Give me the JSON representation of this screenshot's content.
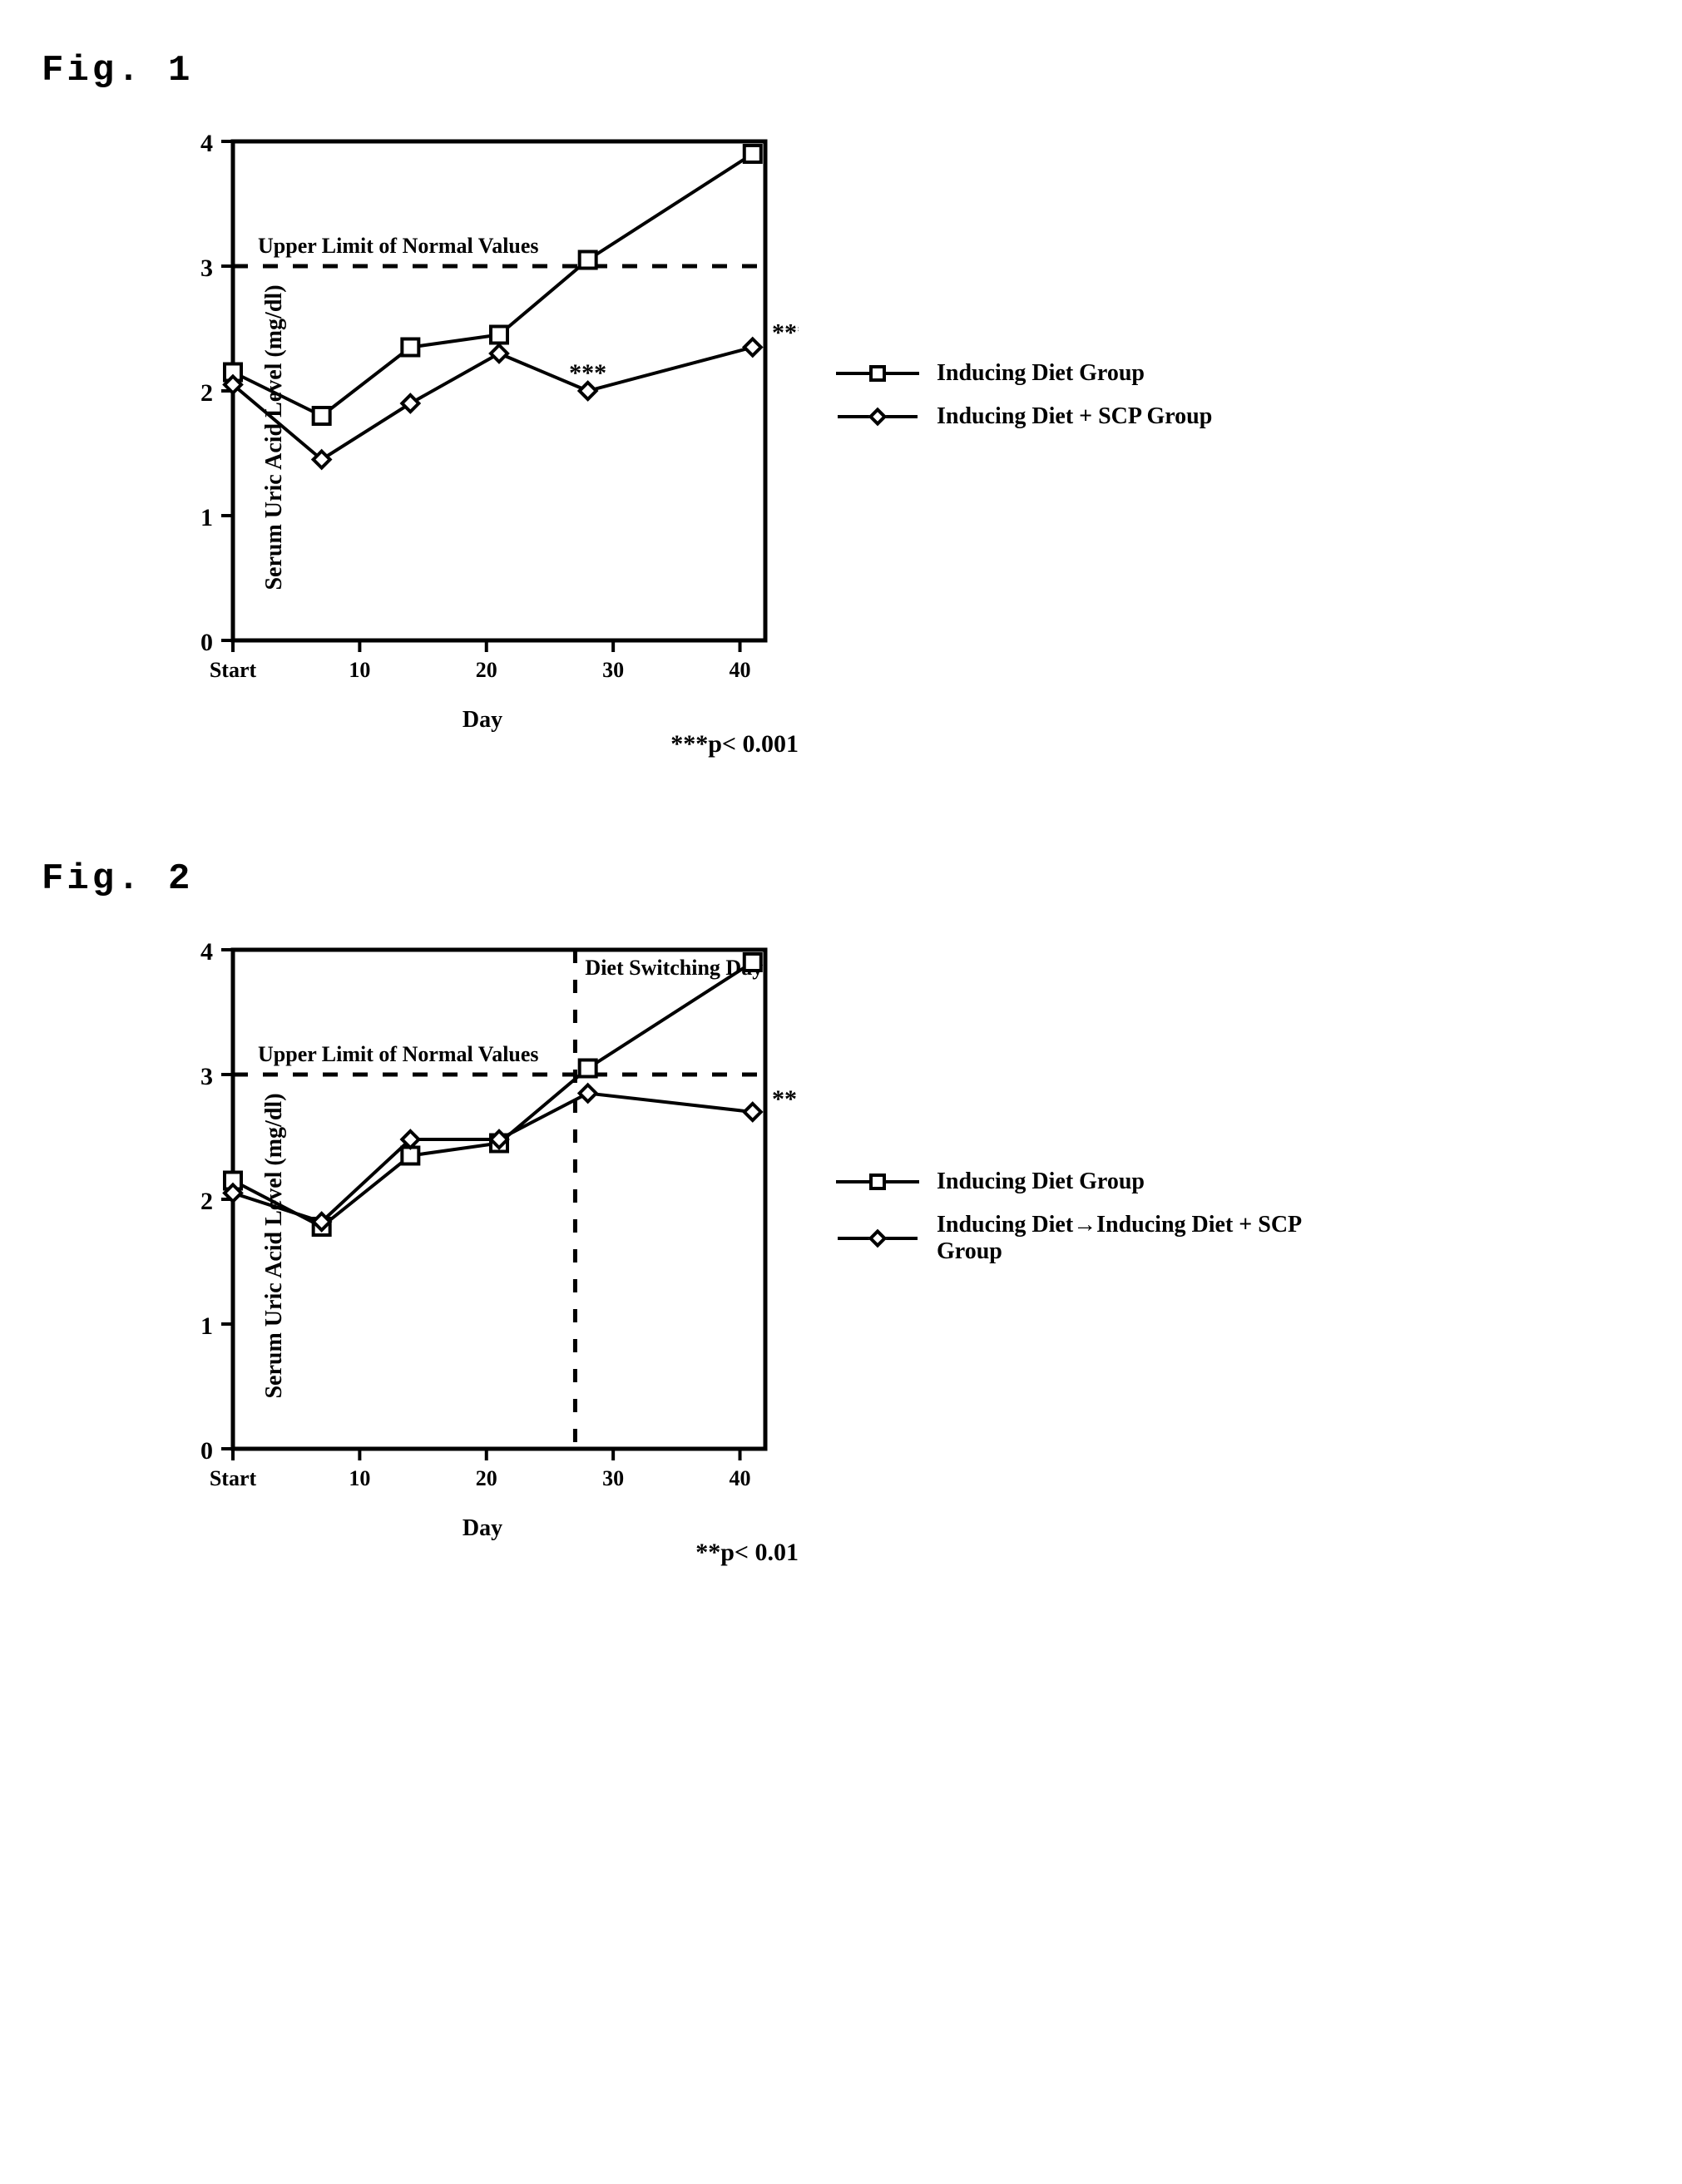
{
  "fig1": {
    "label": "Fig. 1",
    "type": "line",
    "x_values": [
      0,
      7,
      14,
      21,
      28,
      41
    ],
    "xlim": [
      0,
      42
    ],
    "xticks": [
      0,
      10,
      20,
      30,
      40
    ],
    "xtick_labels": [
      "Start",
      "10",
      "20",
      "30",
      "40"
    ],
    "xlabel": "Day",
    "ylim": [
      0,
      4
    ],
    "yticks": [
      0,
      1,
      2,
      3,
      4
    ],
    "ytick_labels": [
      "0",
      "1",
      "2",
      "3",
      "4"
    ],
    "ylabel": "Serum Uric Acid Level (mg/dl)",
    "axis_color": "#000000",
    "background_color": "#ffffff",
    "line_width": 4,
    "marker_size": 20,
    "tick_font_size": 30,
    "label_font_size": 28,
    "text_color": "#000000",
    "series": [
      {
        "name": "Inducing Diet Group",
        "marker": "square",
        "color": "#000000",
        "fill": "#ffffff",
        "y": [
          2.15,
          1.8,
          2.35,
          2.45,
          3.05,
          3.9
        ]
      },
      {
        "name": "Inducing Diet + SCP Group",
        "marker": "diamond",
        "color": "#000000",
        "fill": "#ffffff",
        "y": [
          2.05,
          1.45,
          1.9,
          2.3,
          2.0,
          2.35
        ]
      }
    ],
    "reference_line": {
      "y": 3.0,
      "label": "Upper Limit of Normal Values",
      "style": "dashed",
      "dash": "18 18",
      "color": "#000000"
    },
    "significance_markers": [
      {
        "x": 28,
        "y": 2.0,
        "text": "***",
        "dy": -12
      },
      {
        "x": 41,
        "y": 2.35,
        "text": "***",
        "dy": -8,
        "outside": true
      }
    ],
    "p_note": "***p< 0.001",
    "legend": [
      {
        "marker": "square",
        "text": "Inducing Diet Group"
      },
      {
        "marker": "diamond",
        "text": "Inducing Diet + SCP Group"
      }
    ]
  },
  "fig2": {
    "label": "Fig. 2",
    "type": "line",
    "x_values": [
      0,
      7,
      14,
      21,
      28,
      41
    ],
    "xlim": [
      0,
      42
    ],
    "xticks": [
      0,
      10,
      20,
      30,
      40
    ],
    "xtick_labels": [
      "Start",
      "10",
      "20",
      "30",
      "40"
    ],
    "xlabel": "Day",
    "ylim": [
      0,
      4
    ],
    "yticks": [
      0,
      1,
      2,
      3,
      4
    ],
    "ytick_labels": [
      "0",
      "1",
      "2",
      "3",
      "4"
    ],
    "ylabel": "Serum Uric Acid Level (mg/dl)",
    "axis_color": "#000000",
    "background_color": "#ffffff",
    "line_width": 4,
    "marker_size": 20,
    "tick_font_size": 30,
    "label_font_size": 28,
    "text_color": "#000000",
    "series": [
      {
        "name": "Inducing Diet Group",
        "marker": "square",
        "color": "#000000",
        "fill": "#ffffff",
        "y": [
          2.15,
          1.78,
          2.35,
          2.45,
          3.05,
          3.9
        ]
      },
      {
        "name": "Inducing Diet→Inducing Diet + SCP Group",
        "marker": "diamond",
        "color": "#000000",
        "fill": "#ffffff",
        "y": [
          2.05,
          1.82,
          2.48,
          2.48,
          2.85,
          2.7
        ]
      }
    ],
    "reference_line": {
      "y": 3.0,
      "label": "Upper Limit of Normal Values",
      "style": "dashed",
      "dash": "18 18",
      "color": "#000000"
    },
    "vertical_line": {
      "x": 27,
      "label": "Diet Switching Day",
      "style": "dashed",
      "dash": "16 20",
      "color": "#000000"
    },
    "significance_markers": [
      {
        "x": 41,
        "y": 2.7,
        "text": "**",
        "dy": -6,
        "outside": true
      }
    ],
    "p_note": "**p< 0.01",
    "legend": [
      {
        "marker": "square",
        "text": "Inducing Diet Group"
      },
      {
        "marker": "diamond",
        "text": "Inducing Diet→Inducing Diet + SCP Group"
      }
    ]
  }
}
